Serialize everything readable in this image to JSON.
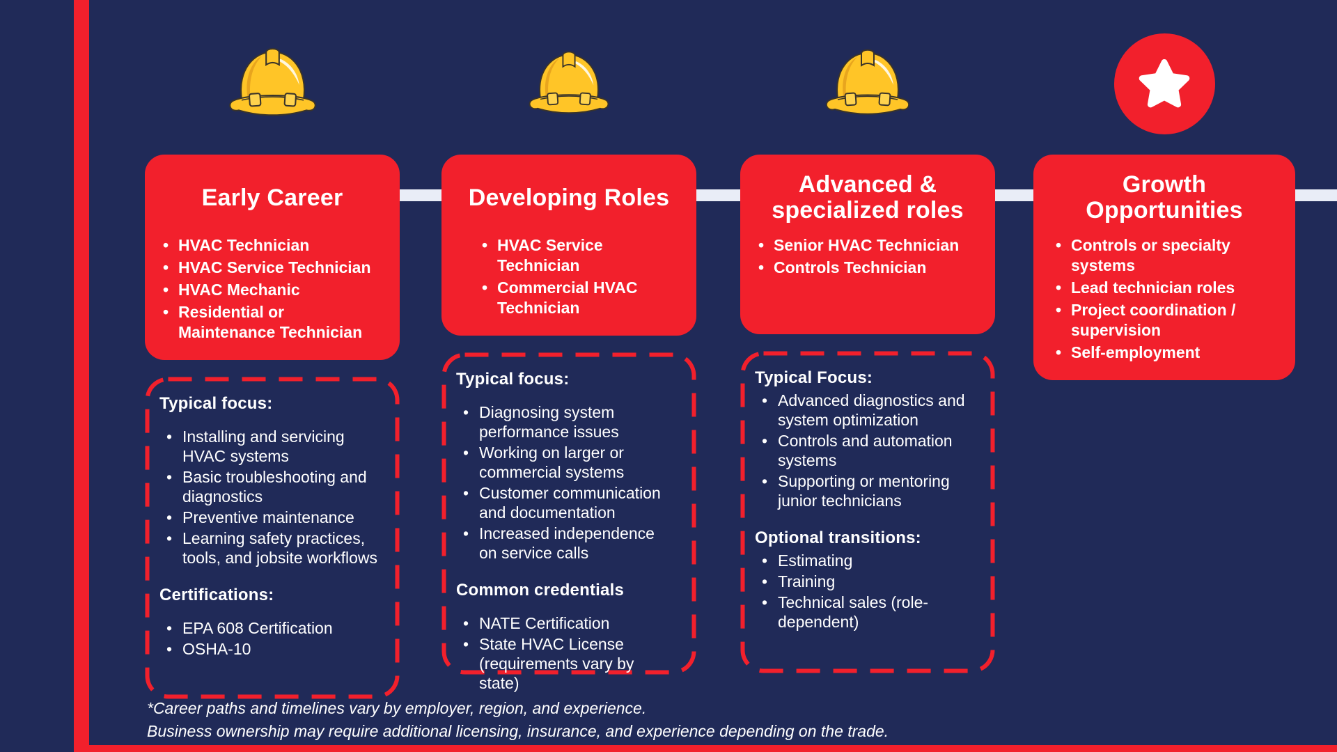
{
  "page": {
    "background_color": "#202A58",
    "accent_red": "#F2202C",
    "connector_color": "#E9EDF7",
    "hat_yellow": "#FFC527",
    "text_color": "#FFFFFF"
  },
  "footnote": {
    "line1": "*Career paths and timelines vary by employer, region, and experience.",
    "line2": "Business ownership may require additional licensing, insurance, and experience depending on the trade."
  },
  "columns": [
    {
      "icon": "hard-hat-icon",
      "title": "Early Career",
      "roles": [
        "HVAC Technician",
        "HVAC Service Technician",
        "HVAC Mechanic",
        "Residential or\nMaintenance Technician"
      ],
      "sections": [
        {
          "heading": "Typical focus:",
          "items": [
            "Installing and servicing\nHVAC systems",
            "Basic troubleshooting and\ndiagnostics",
            "Preventive maintenance",
            "Learning safety practices,\ntools, and jobsite workflows"
          ]
        },
        {
          "heading": "Certifications:",
          "items": [
            "EPA 608 Certification",
            "OSHA-10"
          ]
        }
      ]
    },
    {
      "icon": "hard-hat-icon",
      "title": "Developing Roles",
      "roles": [
        "HVAC Service\nTechnician",
        "Commercial HVAC\nTechnician"
      ],
      "sections": [
        {
          "heading": "Typical focus:",
          "items": [
            "Diagnosing system\nperformance issues",
            "Working on larger or\ncommercial systems",
            "Customer communication\nand documentation",
            "Increased independence\non service calls"
          ]
        },
        {
          "heading": "Common credentials",
          "items": [
            "NATE Certification",
            "State HVAC License\n(requirements vary by\nstate)"
          ]
        }
      ]
    },
    {
      "icon": "hard-hat-icon",
      "title": "Advanced &\nspecialized roles",
      "roles": [
        "Senior HVAC Technician",
        "Controls Technician"
      ],
      "sections": [
        {
          "heading": "Typical Focus:",
          "items": [
            "Advanced diagnostics and\nsystem optimization",
            "Controls and automation\nsystems",
            "Supporting or mentoring\njunior technicians"
          ]
        },
        {
          "heading": "Optional transitions:",
          "items": [
            "Estimating",
            "Training",
            "Technical sales (role-\ndependent)"
          ]
        }
      ]
    },
    {
      "icon": "star-icon",
      "title": "Growth\nOpportunities",
      "roles": [
        "Controls or specialty\nsystems",
        "Lead technician roles",
        "Project coordination /\nsupervision",
        "Self-employment"
      ],
      "sections": []
    }
  ]
}
